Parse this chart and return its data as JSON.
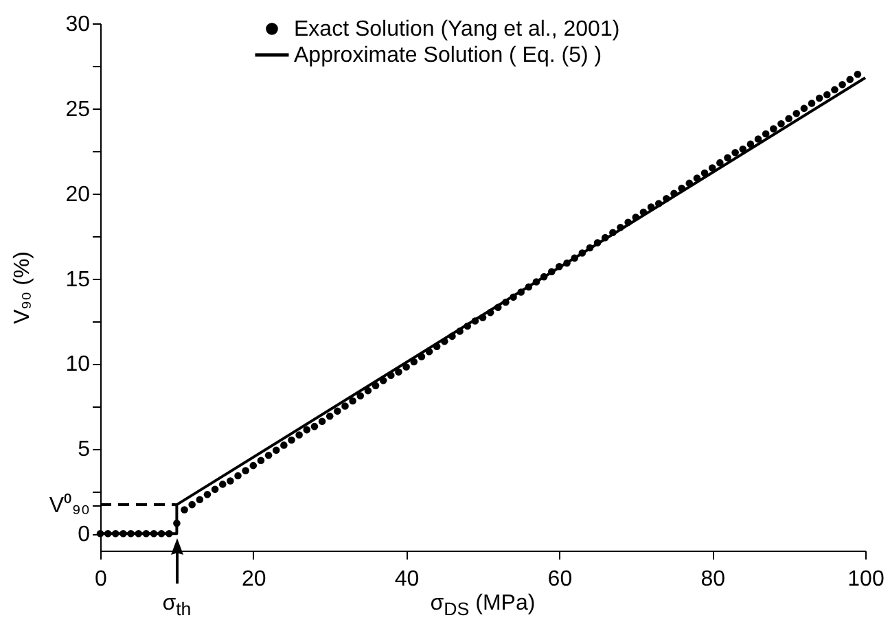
{
  "chart_data": {
    "type": "line",
    "xlabel": "σ$_{DS}$ (MPa)",
    "ylabel": "V₉₀ (%)",
    "xlim": [
      0,
      100
    ],
    "xticks": [
      0,
      20,
      40,
      60,
      80,
      100
    ],
    "ylim": [
      -1,
      30
    ],
    "yticks": [
      0,
      {
        "value": 1.7,
        "label": "V⁰₉₀"
      },
      {
        "value": 2.5,
        "label": null
      },
      5,
      {
        "value": 7.5,
        "label": null
      },
      10,
      {
        "value": 12.5,
        "label": null
      },
      15,
      {
        "value": 17.5,
        "label": null
      },
      20,
      {
        "value": 22.5,
        "label": null
      },
      25,
      {
        "value": 27.5,
        "label": null
      },
      30
    ],
    "grid": false,
    "legend": "top",
    "annotations": [
      {
        "text": "σ$_{th}$",
        "x": 10,
        "y": 0
      }
    ],
    "series": [
      {
        "name": "Exact Solution (Yang et al., 2001)",
        "type": "scatter",
        "marker": "circle",
        "color": "#000000",
        "x": [
          0,
          1,
          2,
          3,
          4,
          5,
          6,
          7,
          8,
          9,
          10,
          11,
          12,
          13,
          14,
          15,
          16,
          17,
          18,
          19,
          20,
          21,
          22,
          23,
          24,
          25,
          26,
          27,
          28,
          29,
          30,
          31,
          32,
          33,
          34,
          35,
          36,
          37,
          38,
          39,
          40,
          41,
          42,
          43,
          44,
          45,
          46,
          47,
          48,
          49,
          50,
          51,
          52,
          53,
          54,
          55,
          56,
          57,
          58,
          59,
          60,
          61,
          62,
          63,
          64,
          65,
          66,
          67,
          68,
          69,
          70,
          71,
          72,
          73,
          74,
          75,
          76,
          77,
          78,
          79,
          80,
          81,
          82,
          83,
          84,
          85,
          86,
          87,
          88,
          89,
          90,
          91,
          92,
          93,
          94,
          95,
          96,
          97,
          98,
          99
        ],
        "values": [
          0,
          0,
          0,
          0,
          0,
          0,
          0,
          0,
          0,
          0,
          0.6,
          1.4,
          1.7,
          2.0,
          2.3,
          2.6,
          2.9,
          3.1,
          3.4,
          3.7,
          4.0,
          4.3,
          4.6,
          4.9,
          5.2,
          5.5,
          5.8,
          6.1,
          6.3,
          6.6,
          6.9,
          7.2,
          7.5,
          7.8,
          8.1,
          8.4,
          8.7,
          9.0,
          9.3,
          9.5,
          9.8,
          10.1,
          10.4,
          10.7,
          11.0,
          11.3,
          11.6,
          11.9,
          12.2,
          12.5,
          12.7,
          13.0,
          13.3,
          13.6,
          13.9,
          14.2,
          14.5,
          14.8,
          15.1,
          15.4,
          15.7,
          15.9,
          16.2,
          16.5,
          16.8,
          17.1,
          17.4,
          17.7,
          18.0,
          18.3,
          18.6,
          18.9,
          19.2,
          19.4,
          19.7,
          20.0,
          20.3,
          20.6,
          20.9,
          21.2,
          21.5,
          21.8,
          22.1,
          22.4,
          22.6,
          22.9,
          23.2,
          23.5,
          23.8,
          24.1,
          24.4,
          24.7,
          25.0,
          25.3,
          25.6,
          25.8,
          26.1,
          26.4,
          26.7,
          27.0
        ]
      },
      {
        "name": "Approximate Solution ( Eq. (5) )",
        "line_style": "solid",
        "color": "#000000",
        "x": [
          0,
          10,
          10,
          100
        ],
        "values": [
          0,
          0,
          1.7,
          26.8
        ]
      },
      {
        "line_style": "dashed",
        "color": "#000000",
        "x": [
          0,
          10
        ],
        "values": [
          1.7,
          1.7
        ]
      }
    ]
  }
}
